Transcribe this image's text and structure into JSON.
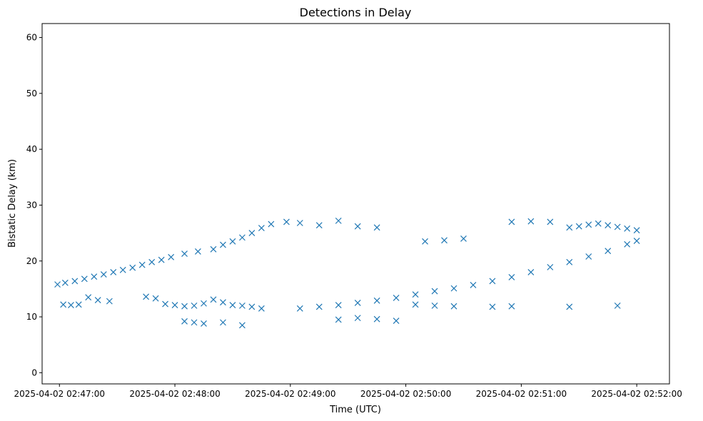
{
  "chart_data": {
    "type": "scatter",
    "title": "Detections in Delay",
    "xlabel": "Time (UTC)",
    "ylabel": "Bistatic Delay (km)",
    "x_tick_labels": [
      "2025-04-02 02:47:00",
      "2025-04-02 02:48:00",
      "2025-04-02 02:49:00",
      "2025-04-02 02:50:00",
      "2025-04-02 02:51:00",
      "2025-04-02 02:52:00"
    ],
    "y_ticks": [
      0,
      10,
      20,
      30,
      40,
      50,
      60
    ],
    "xlim": [
      "2025-04-02 02:46:51",
      "2025-04-02 02:52:17"
    ],
    "ylim": [
      -2,
      62.5
    ],
    "marker": "x",
    "color": "#1f77b4",
    "grid": false,
    "series": [
      {
        "values": [
          [
            "2025-04-02 02:46:59",
            15.8
          ],
          [
            "2025-04-02 02:47:03",
            16.1
          ],
          [
            "2025-04-02 02:47:08",
            16.4
          ],
          [
            "2025-04-02 02:47:13",
            16.8
          ],
          [
            "2025-04-02 02:47:18",
            17.2
          ],
          [
            "2025-04-02 02:47:23",
            17.6
          ],
          [
            "2025-04-02 02:47:28",
            18.0
          ],
          [
            "2025-04-02 02:47:33",
            18.4
          ],
          [
            "2025-04-02 02:47:38",
            18.8
          ],
          [
            "2025-04-02 02:47:43",
            19.3
          ],
          [
            "2025-04-02 02:47:48",
            19.8
          ],
          [
            "2025-04-02 02:47:53",
            20.2
          ],
          [
            "2025-04-02 02:47:58",
            20.7
          ],
          [
            "2025-04-02 02:48:05",
            21.3
          ],
          [
            "2025-04-02 02:48:12",
            21.7
          ],
          [
            "2025-04-02 02:48:20",
            22.1
          ],
          [
            "2025-04-02 02:48:25",
            22.9
          ],
          [
            "2025-04-02 02:48:30",
            23.5
          ],
          [
            "2025-04-02 02:48:35",
            24.2
          ],
          [
            "2025-04-02 02:48:40",
            25.0
          ],
          [
            "2025-04-02 02:48:45",
            25.9
          ],
          [
            "2025-04-02 02:48:50",
            26.6
          ],
          [
            "2025-04-02 02:48:58",
            27.0
          ],
          [
            "2025-04-02 02:49:05",
            26.8
          ],
          [
            "2025-04-02 02:49:15",
            26.4
          ],
          [
            "2025-04-02 02:49:25",
            27.2
          ],
          [
            "2025-04-02 02:49:35",
            26.2
          ],
          [
            "2025-04-02 02:49:45",
            26.0
          ],
          [
            "2025-04-02 02:50:10",
            23.5
          ],
          [
            "2025-04-02 02:50:20",
            23.7
          ],
          [
            "2025-04-02 02:50:30",
            24.0
          ],
          [
            "2025-04-02 02:50:55",
            27.0
          ],
          [
            "2025-04-02 02:51:05",
            27.1
          ],
          [
            "2025-04-02 02:51:15",
            27.0
          ],
          [
            "2025-04-02 02:51:25",
            26.0
          ],
          [
            "2025-04-02 02:51:30",
            26.2
          ],
          [
            "2025-04-02 02:51:35",
            26.5
          ],
          [
            "2025-04-02 02:51:40",
            26.7
          ],
          [
            "2025-04-02 02:51:45",
            26.4
          ],
          [
            "2025-04-02 02:51:50",
            26.1
          ],
          [
            "2025-04-02 02:51:55",
            25.8
          ],
          [
            "2025-04-02 02:52:00",
            25.5
          ],
          [
            "2025-04-02 02:47:02",
            12.2
          ],
          [
            "2025-04-02 02:47:06",
            12.1
          ],
          [
            "2025-04-02 02:47:10",
            12.2
          ],
          [
            "2025-04-02 02:47:15",
            13.5
          ],
          [
            "2025-04-02 02:47:20",
            13.0
          ],
          [
            "2025-04-02 02:47:26",
            12.8
          ],
          [
            "2025-04-02 02:47:45",
            13.6
          ],
          [
            "2025-04-02 02:47:50",
            13.3
          ],
          [
            "2025-04-02 02:47:55",
            12.3
          ],
          [
            "2025-04-02 02:48:00",
            12.1
          ],
          [
            "2025-04-02 02:48:05",
            11.9
          ],
          [
            "2025-04-02 02:48:10",
            12.0
          ],
          [
            "2025-04-02 02:48:15",
            12.4
          ],
          [
            "2025-04-02 02:48:20",
            13.1
          ],
          [
            "2025-04-02 02:48:25",
            12.6
          ],
          [
            "2025-04-02 02:48:30",
            12.1
          ],
          [
            "2025-04-02 02:48:35",
            12.0
          ],
          [
            "2025-04-02 02:48:40",
            11.8
          ],
          [
            "2025-04-02 02:48:45",
            11.5
          ],
          [
            "2025-04-02 02:48:05",
            9.2
          ],
          [
            "2025-04-02 02:48:10",
            9.0
          ],
          [
            "2025-04-02 02:48:15",
            8.8
          ],
          [
            "2025-04-02 02:48:25",
            9.0
          ],
          [
            "2025-04-02 02:48:35",
            8.5
          ],
          [
            "2025-04-02 02:49:05",
            11.5
          ],
          [
            "2025-04-02 02:49:15",
            11.8
          ],
          [
            "2025-04-02 02:49:25",
            12.1
          ],
          [
            "2025-04-02 02:49:35",
            12.5
          ],
          [
            "2025-04-02 02:49:45",
            12.9
          ],
          [
            "2025-04-02 02:49:55",
            13.4
          ],
          [
            "2025-04-02 02:50:05",
            14.0
          ],
          [
            "2025-04-02 02:50:15",
            14.6
          ],
          [
            "2025-04-02 02:50:25",
            15.1
          ],
          [
            "2025-04-02 02:50:35",
            15.7
          ],
          [
            "2025-04-02 02:50:45",
            16.4
          ],
          [
            "2025-04-02 02:50:55",
            17.1
          ],
          [
            "2025-04-02 02:51:05",
            18.0
          ],
          [
            "2025-04-02 02:51:15",
            18.9
          ],
          [
            "2025-04-02 02:51:25",
            19.8
          ],
          [
            "2025-04-02 02:51:35",
            20.8
          ],
          [
            "2025-04-02 02:51:45",
            21.8
          ],
          [
            "2025-04-02 02:51:55",
            23.0
          ],
          [
            "2025-04-02 02:52:00",
            23.6
          ],
          [
            "2025-04-02 02:49:25",
            9.5
          ],
          [
            "2025-04-02 02:49:35",
            9.8
          ],
          [
            "2025-04-02 02:49:45",
            9.6
          ],
          [
            "2025-04-02 02:49:55",
            9.3
          ],
          [
            "2025-04-02 02:50:05",
            12.2
          ],
          [
            "2025-04-02 02:50:15",
            12.0
          ],
          [
            "2025-04-02 02:50:25",
            11.9
          ],
          [
            "2025-04-02 02:50:45",
            11.8
          ],
          [
            "2025-04-02 02:50:55",
            11.9
          ],
          [
            "2025-04-02 02:51:25",
            11.8
          ],
          [
            "2025-04-02 02:51:50",
            12.0
          ]
        ]
      }
    ]
  }
}
